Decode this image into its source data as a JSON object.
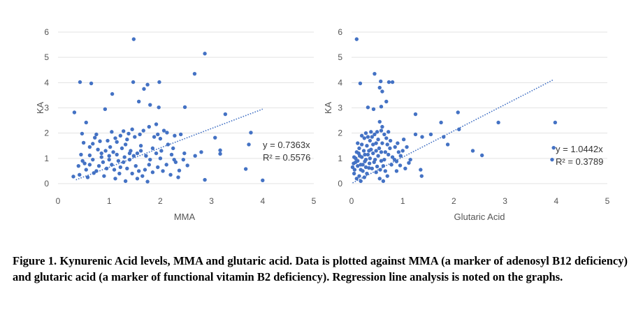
{
  "caption": "Figure 1. Kynurenic Acid levels, MMA and glutaric acid. Data is plotted against MMA (a marker of adenosyl B12 deficiency) and glutaric acid (a marker of functional vitamin B2 deficiency). Regression line analysis is noted on the graphs.",
  "chart_data": [
    {
      "type": "scatter",
      "title": "",
      "xlabel": "MMA",
      "ylabel": "KA",
      "xlim": [
        0,
        5
      ],
      "ylim": [
        0,
        6
      ],
      "x_ticks": [
        "0",
        "1",
        "2",
        "3",
        "4",
        "5"
      ],
      "y_ticks": [
        "0",
        "1",
        "2",
        "3",
        "4",
        "5",
        "6"
      ],
      "grid": true,
      "point_color": "#4472C4",
      "trendline": {
        "type": "linear",
        "x_range": [
          0.35,
          4.0
        ],
        "y_range": [
          0.15,
          2.95
        ],
        "equation": "y = 0.7363x",
        "r_squared": "R² = 0.5576"
      },
      "points": [
        [
          1.48,
          5.72
        ],
        [
          2.87,
          5.15
        ],
        [
          2.67,
          4.35
        ],
        [
          0.43,
          4.02
        ],
        [
          0.65,
          3.97
        ],
        [
          1.47,
          4.02
        ],
        [
          1.75,
          3.92
        ],
        [
          1.68,
          3.75
        ],
        [
          1.98,
          4.02
        ],
        [
          1.06,
          3.55
        ],
        [
          0.92,
          2.95
        ],
        [
          0.32,
          2.82
        ],
        [
          1.8,
          3.12
        ],
        [
          1.58,
          3.25
        ],
        [
          1.97,
          3.02
        ],
        [
          2.48,
          3.03
        ],
        [
          3.27,
          2.75
        ],
        [
          3.77,
          2.02
        ],
        [
          3.73,
          1.55
        ],
        [
          3.07,
          1.82
        ],
        [
          3.17,
          1.32
        ],
        [
          3.17,
          1.18
        ],
        [
          3.67,
          0.58
        ],
        [
          4.0,
          0.13
        ],
        [
          2.87,
          0.15
        ],
        [
          2.37,
          0.52
        ],
        [
          2.53,
          0.72
        ],
        [
          2.47,
          1.2
        ],
        [
          2.27,
          0.95
        ],
        [
          2.4,
          1.95
        ],
        [
          2.28,
          1.9
        ],
        [
          2.13,
          2.02
        ],
        [
          1.92,
          2.35
        ],
        [
          1.78,
          2.25
        ],
        [
          1.67,
          2.1
        ],
        [
          2.07,
          2.1
        ],
        [
          1.95,
          1.95
        ],
        [
          1.88,
          1.85
        ],
        [
          2.0,
          1.78
        ],
        [
          1.6,
          1.95
        ],
        [
          1.5,
          1.85
        ],
        [
          1.38,
          1.98
        ],
        [
          1.28,
          2.08
        ],
        [
          1.22,
          1.9
        ],
        [
          1.12,
          1.8
        ],
        [
          0.97,
          1.7
        ],
        [
          0.82,
          1.68
        ],
        [
          0.72,
          1.82
        ],
        [
          0.68,
          1.58
        ],
        [
          0.55,
          2.42
        ],
        [
          0.47,
          1.98
        ],
        [
          0.5,
          1.62
        ],
        [
          0.62,
          1.45
        ],
        [
          0.78,
          1.35
        ],
        [
          0.85,
          1.2
        ],
        [
          0.93,
          1.3
        ],
        [
          1.02,
          1.45
        ],
        [
          1.08,
          1.25
        ],
        [
          1.15,
          1.15
        ],
        [
          1.25,
          1.4
        ],
        [
          1.32,
          1.55
        ],
        [
          1.42,
          1.3
        ],
        [
          1.48,
          1.1
        ],
        [
          1.55,
          1.2
        ],
        [
          1.62,
          1.3
        ],
        [
          1.72,
          1.1
        ],
        [
          1.85,
          1.4
        ],
        [
          1.92,
          1.2
        ],
        [
          2.02,
          1.3
        ],
        [
          2.15,
          1.55
        ],
        [
          2.22,
          1.15
        ],
        [
          2.3,
          0.85
        ],
        [
          2.45,
          0.95
        ],
        [
          2.68,
          1.1
        ],
        [
          2.8,
          1.25
        ],
        [
          0.4,
          0.7
        ],
        [
          0.48,
          0.9
        ],
        [
          0.55,
          0.55
        ],
        [
          0.62,
          0.75
        ],
        [
          0.68,
          0.95
        ],
        [
          0.75,
          0.5
        ],
        [
          0.8,
          0.7
        ],
        [
          0.88,
          0.85
        ],
        [
          0.95,
          0.6
        ],
        [
          1.0,
          0.95
        ],
        [
          1.05,
          0.75
        ],
        [
          1.1,
          0.55
        ],
        [
          1.18,
          0.9
        ],
        [
          1.22,
          0.65
        ],
        [
          1.28,
          0.85
        ],
        [
          1.35,
          0.6
        ],
        [
          1.4,
          0.95
        ],
        [
          1.45,
          0.4
        ],
        [
          1.52,
          0.7
        ],
        [
          1.58,
          0.5
        ],
        [
          1.65,
          0.3
        ],
        [
          1.7,
          0.55
        ],
        [
          1.78,
          0.75
        ],
        [
          1.85,
          0.45
        ],
        [
          1.95,
          0.65
        ],
        [
          2.05,
          0.5
        ],
        [
          2.12,
          0.75
        ],
        [
          2.2,
          0.35
        ],
        [
          2.35,
          0.25
        ],
        [
          1.75,
          0.08
        ],
        [
          1.32,
          0.1
        ],
        [
          1.12,
          0.2
        ],
        [
          0.3,
          0.28
        ],
        [
          0.42,
          0.35
        ],
        [
          0.58,
          0.25
        ],
        [
          0.7,
          0.42
        ],
        [
          0.9,
          0.3
        ],
        [
          1.2,
          0.4
        ],
        [
          1.55,
          0.2
        ],
        [
          0.85,
          1.05
        ],
        [
          1.0,
          1.1
        ],
        [
          1.3,
          1.05
        ],
        [
          1.4,
          1.2
        ],
        [
          1.62,
          1.5
        ],
        [
          1.8,
          0.95
        ],
        [
          2.0,
          1.0
        ],
        [
          0.62,
          1.12
        ],
        [
          0.45,
          1.15
        ],
        [
          0.52,
          0.8
        ],
        [
          1.15,
          1.65
        ],
        [
          1.35,
          1.75
        ],
        [
          0.75,
          1.95
        ],
        [
          1.05,
          2.05
        ],
        [
          1.45,
          2.15
        ],
        [
          2.25,
          1.4
        ]
      ]
    },
    {
      "type": "scatter",
      "title": "",
      "xlabel": "Glutaric Acid",
      "ylabel": "KA",
      "xlim": [
        0,
        5
      ],
      "ylim": [
        0,
        6
      ],
      "x_ticks": [
        "0",
        "1",
        "2",
        "3",
        "4",
        "5"
      ],
      "y_ticks": [
        "0",
        "1",
        "2",
        "3",
        "4",
        "5",
        "6"
      ],
      "grid": true,
      "point_color": "#4472C4",
      "trendline": {
        "type": "linear",
        "x_range": [
          0.02,
          3.95
        ],
        "y_range": [
          0.03,
          4.12
        ],
        "equation": "y = 1.0442x",
        "r_squared": "R² = 0.3789"
      },
      "points": [
        [
          0.1,
          5.72
        ],
        [
          0.45,
          4.35
        ],
        [
          0.57,
          4.05
        ],
        [
          0.17,
          3.97
        ],
        [
          0.73,
          4.02
        ],
        [
          0.8,
          4.02
        ],
        [
          0.55,
          3.8
        ],
        [
          0.6,
          3.65
        ],
        [
          0.68,
          3.25
        ],
        [
          0.32,
          3.02
        ],
        [
          0.43,
          2.95
        ],
        [
          0.58,
          3.05
        ],
        [
          1.25,
          2.75
        ],
        [
          1.75,
          2.42
        ],
        [
          2.08,
          2.82
        ],
        [
          2.1,
          2.15
        ],
        [
          2.87,
          2.42
        ],
        [
          3.98,
          2.42
        ],
        [
          3.95,
          1.42
        ],
        [
          3.92,
          0.95
        ],
        [
          2.55,
          1.12
        ],
        [
          2.37,
          1.3
        ],
        [
          1.88,
          1.55
        ],
        [
          1.8,
          1.85
        ],
        [
          1.55,
          1.95
        ],
        [
          1.38,
          1.85
        ],
        [
          1.25,
          1.95
        ],
        [
          1.35,
          0.55
        ],
        [
          1.37,
          0.3
        ],
        [
          1.15,
          0.95
        ],
        [
          1.05,
          0.6
        ],
        [
          0.95,
          0.72
        ],
        [
          0.88,
          0.5
        ],
        [
          0.92,
          1.25
        ],
        [
          1.0,
          1.3
        ],
        [
          0.85,
          1.45
        ],
        [
          0.75,
          1.4
        ],
        [
          0.68,
          1.8
        ],
        [
          0.72,
          2.05
        ],
        [
          0.6,
          2.25
        ],
        [
          0.55,
          2.45
        ],
        [
          0.5,
          2.05
        ],
        [
          0.45,
          1.95
        ],
        [
          0.38,
          2.05
        ],
        [
          0.32,
          1.85
        ],
        [
          0.28,
          2.0
        ],
        [
          0.25,
          1.8
        ],
        [
          0.2,
          1.55
        ],
        [
          0.15,
          1.4
        ],
        [
          0.1,
          1.25
        ],
        [
          0.05,
          1.05
        ],
        [
          0.08,
          0.85
        ],
        [
          0.12,
          0.7
        ],
        [
          0.18,
          0.55
        ],
        [
          0.22,
          0.75
        ],
        [
          0.28,
          0.95
        ],
        [
          0.32,
          1.15
        ],
        [
          0.38,
          1.35
        ],
        [
          0.42,
          1.55
        ],
        [
          0.48,
          1.3
        ],
        [
          0.52,
          1.1
        ],
        [
          0.58,
          0.9
        ],
        [
          0.62,
          0.7
        ],
        [
          0.66,
          0.5
        ],
        [
          0.7,
          0.3
        ],
        [
          0.62,
          0.1
        ],
        [
          0.55,
          0.2
        ],
        [
          0.48,
          0.45
        ],
        [
          0.4,
          0.6
        ],
        [
          0.35,
          0.8
        ],
        [
          0.3,
          0.4
        ],
        [
          0.25,
          0.25
        ],
        [
          0.18,
          0.1
        ],
        [
          0.1,
          0.2
        ],
        [
          0.05,
          0.4
        ],
        [
          0.02,
          0.65
        ],
        [
          0.08,
          1.0
        ],
        [
          0.14,
          1.2
        ],
        [
          0.2,
          1.05
        ],
        [
          0.26,
          0.88
        ],
        [
          0.34,
          0.62
        ],
        [
          0.44,
          0.85
        ],
        [
          0.5,
          0.68
        ],
        [
          0.56,
          0.55
        ],
        [
          0.64,
          0.95
        ],
        [
          0.72,
          1.15
        ],
        [
          0.8,
          1.05
        ],
        [
          0.88,
          0.88
        ],
        [
          0.96,
          1.1
        ],
        [
          1.08,
          1.45
        ],
        [
          1.12,
          0.82
        ],
        [
          0.15,
          0.3
        ],
        [
          0.22,
          0.5
        ],
        [
          0.28,
          0.65
        ],
        [
          0.36,
          1.0
        ],
        [
          0.42,
          1.2
        ],
        [
          0.46,
          0.95
        ],
        [
          0.54,
          1.4
        ],
        [
          0.6,
          1.6
        ],
        [
          0.66,
          1.25
        ],
        [
          0.78,
          0.75
        ],
        [
          0.84,
          0.95
        ],
        [
          0.06,
          0.55
        ],
        [
          0.12,
          0.9
        ],
        [
          0.18,
          0.75
        ],
        [
          0.24,
          1.3
        ],
        [
          0.3,
          1.5
        ],
        [
          0.36,
          1.7
        ],
        [
          0.4,
          1.85
        ],
        [
          0.52,
          1.75
        ],
        [
          0.58,
          2.1
        ],
        [
          0.64,
          1.95
        ],
        [
          0.7,
          1.55
        ],
        [
          0.76,
          1.7
        ],
        [
          0.9,
          1.6
        ],
        [
          1.02,
          1.75
        ],
        [
          0.2,
          1.9
        ],
        [
          0.12,
          1.6
        ],
        [
          0.04,
          0.8
        ],
        [
          0.16,
          1.1
        ],
        [
          0.26,
          1.15
        ],
        [
          0.34,
          1.3
        ],
        [
          0.48,
          1.6
        ],
        [
          0.58,
          1.25
        ]
      ]
    }
  ]
}
